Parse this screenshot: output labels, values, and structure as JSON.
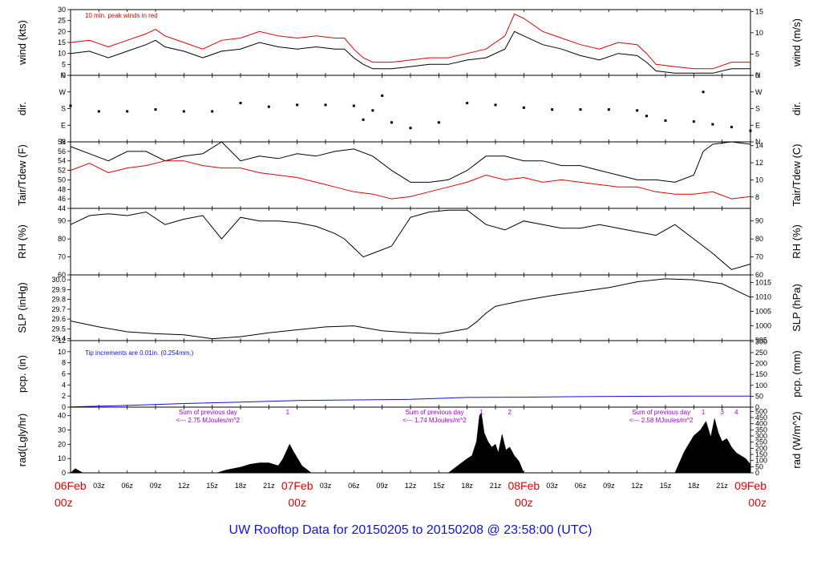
{
  "colors": {
    "axis": "#000000",
    "red": "#e00000",
    "blue": "#1010e0",
    "purple": "#a000d0",
    "fill": "#000000"
  },
  "title": "UW Rooftop Data for 20150205  to  20150208 @ 23:58:00  (UTC)",
  "time_axis": {
    "hours_total": 72,
    "date_labels": [
      {
        "hour": 0,
        "date": "06Feb",
        "time": "00z"
      },
      {
        "hour": 24,
        "date": "07Feb",
        "time": "00z"
      },
      {
        "hour": 48,
        "date": "08Feb",
        "time": "00z"
      },
      {
        "hour": 72,
        "date": "09Feb",
        "time": "00z"
      }
    ],
    "hour_labels": [
      {
        "hour": 3,
        "label": "03z"
      },
      {
        "hour": 6,
        "label": "06z"
      },
      {
        "hour": 9,
        "label": "09z"
      },
      {
        "hour": 12,
        "label": "12z"
      },
      {
        "hour": 15,
        "label": "15z"
      },
      {
        "hour": 18,
        "label": "18z"
      },
      {
        "hour": 21,
        "label": "21z"
      },
      {
        "hour": 27,
        "label": "03z"
      },
      {
        "hour": 30,
        "label": "06z"
      },
      {
        "hour": 33,
        "label": "09z"
      },
      {
        "hour": 36,
        "label": "12z"
      },
      {
        "hour": 39,
        "label": "15z"
      },
      {
        "hour": 42,
        "label": "18z"
      },
      {
        "hour": 45,
        "label": "21z"
      },
      {
        "hour": 51,
        "label": "03z"
      },
      {
        "hour": 54,
        "label": "06z"
      },
      {
        "hour": 57,
        "label": "09z"
      },
      {
        "hour": 60,
        "label": "12z"
      },
      {
        "hour": 63,
        "label": "15z"
      },
      {
        "hour": 66,
        "label": "18z"
      },
      {
        "hour": 69,
        "label": "21z"
      }
    ]
  },
  "chart_data": [
    {
      "panel": "wind",
      "type": "line",
      "ylabel_left": "wind (kts)",
      "ylabel_right": "wind (m/s)",
      "ylim": [
        0,
        30
      ],
      "left_ticks": [
        0,
        5,
        10,
        15,
        20,
        25,
        30
      ],
      "ylim_right": [
        0,
        15.43
      ],
      "right_ticks": [
        0,
        5,
        10,
        15
      ],
      "annotation": "10 min. peak winds in red",
      "series": [
        {
          "color": "#000000",
          "x": [
            0,
            2,
            4,
            6,
            8,
            9,
            10,
            12,
            14,
            16,
            18,
            20,
            22,
            24,
            26,
            28,
            29,
            30,
            31,
            32,
            34,
            36,
            38,
            40,
            42,
            44,
            46,
            47,
            48,
            50,
            52,
            54,
            56,
            58,
            60,
            61,
            62,
            64,
            66,
            68,
            70,
            72
          ],
          "y": [
            10,
            11,
            8,
            11,
            14,
            16,
            13,
            11,
            8,
            11,
            12,
            15,
            13,
            12,
            13,
            12,
            12,
            8,
            5,
            3,
            3,
            4,
            5,
            5,
            7,
            8,
            12,
            20,
            18,
            14,
            12,
            9,
            7,
            10,
            9,
            6,
            2,
            1,
            1,
            1,
            3,
            3
          ]
        },
        {
          "color": "#e00000",
          "x": [
            0,
            2,
            4,
            6,
            8,
            9,
            10,
            12,
            14,
            16,
            18,
            20,
            22,
            24,
            26,
            28,
            29,
            30,
            31,
            32,
            34,
            36,
            38,
            40,
            42,
            44,
            46,
            47,
            48,
            50,
            52,
            54,
            56,
            58,
            60,
            61,
            62,
            64,
            66,
            68,
            70,
            72
          ],
          "y": [
            15,
            16,
            13,
            16,
            19,
            21,
            18,
            15,
            12,
            16,
            17,
            20,
            18,
            17,
            18,
            17,
            17,
            12,
            8,
            6,
            6,
            7,
            8,
            8,
            10,
            12,
            18,
            28,
            26,
            20,
            17,
            14,
            12,
            15,
            14,
            10,
            5,
            4,
            3,
            3,
            6,
            6
          ]
        }
      ]
    },
    {
      "panel": "direction",
      "type": "scatter",
      "ylabel_left": "dir.",
      "ylabel_right": "dir.",
      "ylim": [
        0,
        360
      ],
      "left_ticks": [
        "N",
        "E",
        "S",
        "W",
        "N"
      ],
      "right_ticks": [
        "N",
        "E",
        "S",
        "W",
        "N"
      ],
      "series": [
        {
          "color": "#000000",
          "x": [
            0,
            3,
            6,
            9,
            12,
            15,
            18,
            21,
            24,
            27,
            30,
            31,
            32,
            33,
            34,
            36,
            39,
            42,
            45,
            48,
            51,
            54,
            57,
            60,
            61,
            63,
            66,
            67,
            68,
            70,
            72
          ],
          "y": [
            195,
            165,
            165,
            175,
            165,
            165,
            210,
            190,
            200,
            200,
            195,
            120,
            170,
            250,
            105,
            75,
            105,
            210,
            200,
            185,
            175,
            175,
            175,
            170,
            140,
            115,
            110,
            270,
            95,
            80,
            60
          ]
        }
      ]
    },
    {
      "panel": "temperature",
      "type": "line",
      "ylabel_left": "Tair/Tdew (F)",
      "ylabel_right": "Tair/Tdew (C)",
      "ylim": [
        44,
        58
      ],
      "left_ticks": [
        44,
        46,
        48,
        50,
        52,
        54,
        56,
        58
      ],
      "ylim_right": [
        6.67,
        14.44
      ],
      "right_ticks": [
        8,
        10,
        12,
        14
      ],
      "series": [
        {
          "color": "#000000",
          "x": [
            0,
            2,
            4,
            6,
            8,
            10,
            12,
            14,
            16,
            18,
            20,
            22,
            24,
            26,
            28,
            30,
            32,
            34,
            36,
            38,
            40,
            42,
            44,
            46,
            48,
            50,
            52,
            54,
            56,
            58,
            60,
            62,
            64,
            66,
            67,
            68,
            70,
            72
          ],
          "y": [
            57,
            55.5,
            54,
            56,
            56,
            54,
            55,
            55.5,
            58,
            54,
            55,
            54.5,
            55.5,
            55,
            56,
            56.5,
            55,
            52,
            49.5,
            49.5,
            50,
            52,
            55,
            55,
            54,
            54,
            53,
            53,
            52,
            51,
            50,
            50,
            49.5,
            51,
            56,
            57.5,
            58,
            57.5
          ]
        },
        {
          "color": "#e00000",
          "x": [
            0,
            2,
            4,
            6,
            8,
            10,
            12,
            14,
            16,
            18,
            20,
            22,
            24,
            26,
            28,
            30,
            32,
            34,
            36,
            38,
            40,
            42,
            44,
            46,
            48,
            50,
            52,
            54,
            56,
            58,
            60,
            62,
            64,
            66,
            68,
            70,
            72
          ],
          "y": [
            52,
            53.5,
            51.5,
            52.5,
            53,
            54,
            54,
            53,
            52.5,
            52.5,
            51.5,
            51,
            50.5,
            49.5,
            48.5,
            47.5,
            47,
            46,
            46.5,
            47.5,
            48.5,
            49.5,
            51,
            50,
            50.5,
            49.5,
            50,
            49.5,
            49,
            48.5,
            48.5,
            47.5,
            47,
            47,
            47.5,
            46,
            46.5
          ]
        }
      ]
    },
    {
      "panel": "rh",
      "type": "line",
      "ylabel_left": "RH (%)",
      "ylabel_right": "RH (%)",
      "ylim": [
        60,
        97
      ],
      "left_ticks": [
        60,
        70,
        80,
        90
      ],
      "right_ticks": [
        60,
        70,
        80,
        90
      ],
      "series": [
        {
          "color": "#000000",
          "x": [
            0,
            2,
            4,
            6,
            8,
            10,
            12,
            14,
            16,
            18,
            20,
            22,
            24,
            26,
            28,
            29,
            30,
            31,
            32,
            34,
            36,
            38,
            40,
            42,
            44,
            46,
            48,
            50,
            52,
            54,
            56,
            58,
            60,
            62,
            64,
            66,
            68,
            70,
            72
          ],
          "y": [
            88,
            93,
            94,
            93,
            95,
            88,
            91,
            93,
            80,
            92,
            90,
            90,
            89,
            87,
            83,
            80,
            75,
            70,
            72,
            76,
            92,
            95,
            96,
            96,
            88,
            85,
            90,
            88,
            86,
            86,
            88,
            86,
            84,
            82,
            88,
            80,
            72,
            63,
            66
          ]
        }
      ]
    },
    {
      "panel": "pressure",
      "type": "line",
      "ylabel_left": "SLP (inHg)",
      "ylabel_right": "SLP (hPa)",
      "ylim": [
        29.38,
        30.05
      ],
      "left_ticks": [
        29.4,
        29.5,
        29.6,
        29.7,
        29.8,
        29.9,
        30.0
      ],
      "ylim_right": [
        994.9,
        1017.6
      ],
      "right_ticks": [
        995,
        1000,
        1005,
        1010,
        1015
      ],
      "series": [
        {
          "color": "#000000",
          "x": [
            0,
            3,
            6,
            9,
            12,
            15,
            18,
            21,
            24,
            27,
            30,
            33,
            36,
            39,
            42,
            43,
            44,
            45,
            48,
            51,
            54,
            57,
            60,
            63,
            66,
            69,
            72
          ],
          "y": [
            29.58,
            29.52,
            29.47,
            29.45,
            29.44,
            29.4,
            29.42,
            29.46,
            29.49,
            29.52,
            29.53,
            29.48,
            29.46,
            29.45,
            29.5,
            29.57,
            29.66,
            29.73,
            29.79,
            29.84,
            29.88,
            29.92,
            29.98,
            30.01,
            30.0,
            29.96,
            29.82
          ]
        }
      ]
    },
    {
      "panel": "precipitation",
      "type": "line",
      "ylabel_left": "pcp. (in)",
      "ylabel_right": "pcp. (mm)",
      "ylim": [
        0,
        12
      ],
      "left_ticks": [
        0,
        2,
        4,
        6,
        8,
        10,
        12
      ],
      "ylim_right": [
        0,
        304.8
      ],
      "right_ticks": [
        0,
        50,
        100,
        150,
        200,
        250,
        300
      ],
      "annotation": "Tip increments are 0.01in. (0.254mm.)",
      "series": [
        {
          "color": "#1010e0",
          "x": [
            0,
            6,
            12,
            18,
            24,
            30,
            36,
            42,
            48,
            54,
            60,
            66,
            72
          ],
          "y": [
            0.05,
            0.3,
            0.65,
            0.9,
            1.2,
            1.3,
            1.4,
            1.75,
            1.8,
            1.9,
            1.95,
            2.0,
            2.0
          ]
        }
      ]
    },
    {
      "panel": "radiation",
      "type": "area",
      "ylabel_left": "rad(Lgly/hr)",
      "ylabel_right": "rad (W/m^2)",
      "ylim": [
        0,
        46
      ],
      "left_ticks": [
        0,
        10,
        20,
        30,
        40
      ],
      "ylim_right": [
        0,
        535
      ],
      "right_ticks": [
        0,
        50,
        100,
        150,
        200,
        250,
        300,
        350,
        400,
        450,
        500
      ],
      "series": [
        {
          "color": "#000000",
          "x": [
            0,
            0.5,
            1.3,
            15.5,
            16.5,
            18,
            19,
            20,
            21,
            22,
            22.5,
            23.2,
            23.6,
            24.5,
            25.5,
            40,
            41,
            42,
            42.5,
            43,
            43.3,
            43.5,
            43.8,
            44.2,
            44.6,
            45,
            45.3,
            45.7,
            46.1,
            46.5,
            47,
            47.5,
            48,
            64,
            65,
            66,
            66.7,
            67.3,
            67.8,
            68.2,
            68.6,
            69,
            69.5,
            70,
            70.5,
            71,
            71.5,
            72
          ],
          "y": [
            0,
            3,
            0,
            0,
            2,
            4,
            6,
            7,
            7,
            5,
            10,
            20,
            15,
            5,
            0,
            0,
            5,
            10,
            12,
            22,
            40,
            42,
            28,
            22,
            18,
            20,
            14,
            27,
            16,
            18,
            12,
            8,
            0,
            0,
            15,
            26,
            30,
            36,
            25,
            38,
            28,
            22,
            24,
            18,
            14,
            12,
            10,
            6
          ]
        }
      ],
      "day_notes": [
        {
          "hour": 12,
          "line1": "Sum of previous day",
          "line2": "<--- 2.75 MJoules/m^2"
        },
        {
          "hour": 36,
          "line1": "Sum of previous day",
          "line2": "<--- 1.74 MJoules/m^2"
        },
        {
          "hour": 60,
          "line1": "Sum of previous day",
          "line2": "<--- 2.58 MJoules/m^2"
        }
      ],
      "markers": [
        {
          "hour": 23,
          "label": "1"
        },
        {
          "hour": 43.5,
          "label": "1"
        },
        {
          "hour": 46.5,
          "label": "2"
        },
        {
          "hour": 67,
          "label": "1"
        },
        {
          "hour": 69,
          "label": "3"
        },
        {
          "hour": 70.5,
          "label": "4"
        }
      ]
    }
  ]
}
